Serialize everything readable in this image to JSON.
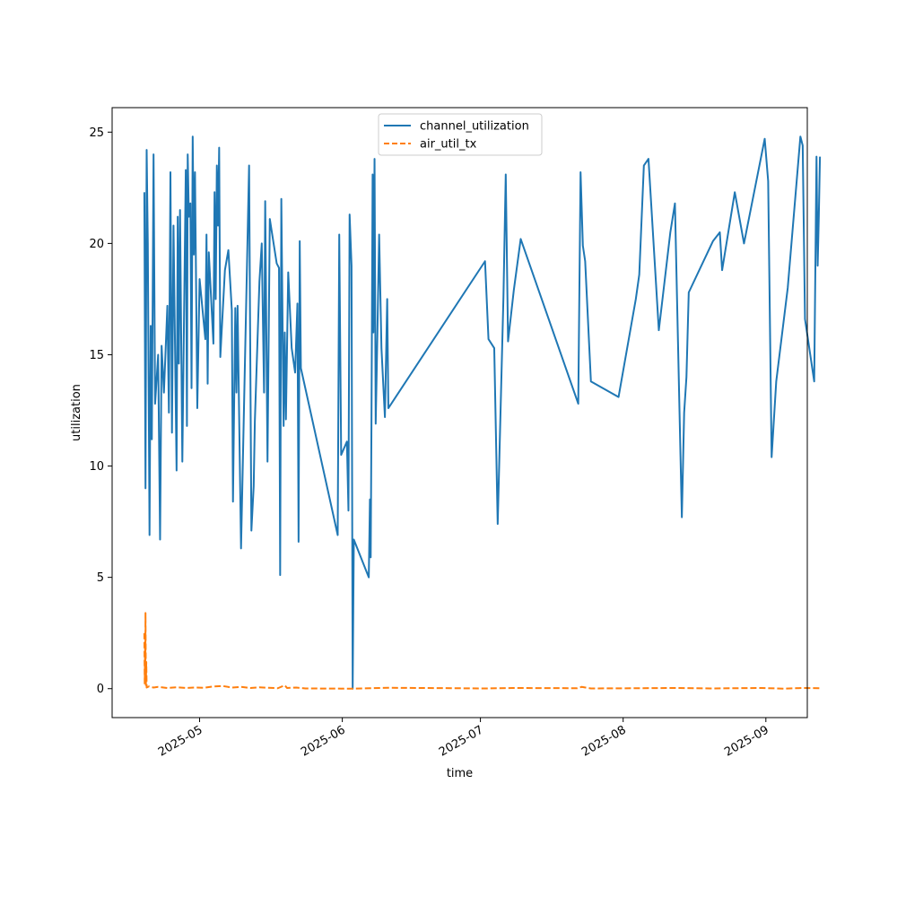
{
  "chart_data": {
    "type": "line",
    "title": "",
    "xlabel": "time",
    "ylabel": "utilization",
    "x_ticks": [
      "2025-05",
      "2025-06",
      "2025-07",
      "2025-08",
      "2025-09"
    ],
    "y_ticks": [
      "0",
      "5",
      "10",
      "15",
      "20",
      "25"
    ],
    "xlim": [
      "2025-04-12",
      "2025-09-10"
    ],
    "ylim": [
      -1.3,
      26.1
    ],
    "grid": false,
    "legend_position": "top-center",
    "series": [
      {
        "name": "channel_utilization",
        "color": "#1f77b4",
        "style": "solid",
        "points": [
          [
            "2025-04-19T00:00",
            22.3
          ],
          [
            "2025-04-19T06:00",
            9.0
          ],
          [
            "2025-04-19T12:00",
            24.2
          ],
          [
            "2025-04-19T18:00",
            20.0
          ],
          [
            "2025-04-20T03:00",
            6.9
          ],
          [
            "2025-04-20T09:00",
            16.3
          ],
          [
            "2025-04-20T15:00",
            11.2
          ],
          [
            "2025-04-21T00:00",
            24.0
          ],
          [
            "2025-04-21T08:00",
            12.8
          ],
          [
            "2025-04-22T00:00",
            15.0
          ],
          [
            "2025-04-22T10:00",
            6.7
          ],
          [
            "2025-04-22T18:00",
            15.4
          ],
          [
            "2025-04-23T06:00",
            13.3
          ],
          [
            "2025-04-24T00:00",
            17.2
          ],
          [
            "2025-04-24T08:00",
            12.4
          ],
          [
            "2025-04-24T16:00",
            23.2
          ],
          [
            "2025-04-25T00:00",
            11.5
          ],
          [
            "2025-04-25T08:00",
            20.8
          ],
          [
            "2025-04-26T00:00",
            9.8
          ],
          [
            "2025-04-26T06:00",
            21.2
          ],
          [
            "2025-04-26T12:00",
            14.6
          ],
          [
            "2025-04-26T18:00",
            21.5
          ],
          [
            "2025-04-27T06:00",
            10.2
          ],
          [
            "2025-04-27T18:00",
            19.0
          ],
          [
            "2025-04-28T00:00",
            23.3
          ],
          [
            "2025-04-28T06:00",
            11.8
          ],
          [
            "2025-04-28T10:00",
            24.0
          ],
          [
            "2025-04-28T16:00",
            21.2
          ],
          [
            "2025-04-29T00:00",
            21.8
          ],
          [
            "2025-04-29T06:00",
            13.5
          ],
          [
            "2025-04-29T12:00",
            24.8
          ],
          [
            "2025-04-29T18:00",
            19.5
          ],
          [
            "2025-04-30T00:00",
            23.2
          ],
          [
            "2025-04-30T12:00",
            12.6
          ],
          [
            "2025-05-01T00:00",
            18.4
          ],
          [
            "2025-05-02T06:00",
            15.7
          ],
          [
            "2025-05-02T12:00",
            20.4
          ],
          [
            "2025-05-02T18:00",
            13.7
          ],
          [
            "2025-05-03T00:00",
            19.6
          ],
          [
            "2025-05-04T00:00",
            15.5
          ],
          [
            "2025-05-04T06:00",
            22.3
          ],
          [
            "2025-05-04T12:00",
            17.5
          ],
          [
            "2025-05-04T18:00",
            23.5
          ],
          [
            "2025-05-05T00:00",
            20.8
          ],
          [
            "2025-05-05T06:00",
            24.3
          ],
          [
            "2025-05-05T12:00",
            14.9
          ],
          [
            "2025-05-06T12:00",
            18.8
          ],
          [
            "2025-05-07T06:00",
            19.7
          ],
          [
            "2025-05-08T00:00",
            17.0
          ],
          [
            "2025-05-08T06:00",
            8.4
          ],
          [
            "2025-05-08T18:00",
            17.1
          ],
          [
            "2025-05-09T00:00",
            13.3
          ],
          [
            "2025-05-09T06:00",
            17.2
          ],
          [
            "2025-05-10T00:00",
            6.3
          ],
          [
            "2025-05-11T18:00",
            23.5
          ],
          [
            "2025-05-12T06:00",
            7.1
          ],
          [
            "2025-05-12T18:00",
            9.1
          ],
          [
            "2025-05-13T00:00",
            12.0
          ],
          [
            "2025-05-14T00:00",
            18.3
          ],
          [
            "2025-05-14T12:00",
            20.0
          ],
          [
            "2025-05-15T00:00",
            13.3
          ],
          [
            "2025-05-15T06:00",
            21.9
          ],
          [
            "2025-05-15T18:00",
            10.2
          ],
          [
            "2025-05-16T06:00",
            21.1
          ],
          [
            "2025-05-17T18:00",
            19.1
          ],
          [
            "2025-05-18T06:00",
            18.9
          ],
          [
            "2025-05-18T12:00",
            5.1
          ],
          [
            "2025-05-18T18:00",
            22.0
          ],
          [
            "2025-05-19T06:00",
            11.8
          ],
          [
            "2025-05-19T12:00",
            16.0
          ],
          [
            "2025-05-19T18:00",
            12.1
          ],
          [
            "2025-05-20T06:00",
            18.7
          ],
          [
            "2025-05-21T00:00",
            15.3
          ],
          [
            "2025-05-21T18:00",
            14.2
          ],
          [
            "2025-05-22T06:00",
            17.3
          ],
          [
            "2025-05-22T12:00",
            6.6
          ],
          [
            "2025-05-22T18:00",
            20.1
          ],
          [
            "2025-05-23T00:00",
            14.4
          ],
          [
            "2025-05-31T00:00",
            6.9
          ],
          [
            "2025-05-31T08:00",
            20.4
          ],
          [
            "2025-05-31T18:00",
            10.5
          ],
          [
            "2025-06-02T00:00",
            11.1
          ],
          [
            "2025-06-02T08:00",
            8.0
          ],
          [
            "2025-06-02T14:00",
            21.3
          ],
          [
            "2025-06-03T00:00",
            19.0
          ],
          [
            "2025-06-03T06:00",
            0.0
          ],
          [
            "2025-06-03T12:00",
            6.7
          ],
          [
            "2025-06-06T18:00",
            5.0
          ],
          [
            "2025-06-07T00:00",
            8.5
          ],
          [
            "2025-06-07T04:00",
            5.9
          ],
          [
            "2025-06-07T08:00",
            12.0
          ],
          [
            "2025-06-07T14:00",
            23.1
          ],
          [
            "2025-06-07T18:00",
            16.0
          ],
          [
            "2025-06-08T00:00",
            23.8
          ],
          [
            "2025-06-08T06:00",
            11.9
          ],
          [
            "2025-06-08T12:00",
            14.6
          ],
          [
            "2025-06-09T00:00",
            20.4
          ],
          [
            "2025-06-09T12:00",
            15.3
          ],
          [
            "2025-06-10T06:00",
            12.2
          ],
          [
            "2025-06-10T18:00",
            17.5
          ],
          [
            "2025-06-11T00:00",
            12.6
          ],
          [
            "2025-07-02T00:00",
            19.2
          ],
          [
            "2025-07-02T18:00",
            15.7
          ],
          [
            "2025-07-04T00:00",
            15.3
          ],
          [
            "2025-07-04T18:00",
            7.4
          ],
          [
            "2025-07-06T00:00",
            17.6
          ],
          [
            "2025-07-06T12:00",
            23.1
          ],
          [
            "2025-07-07T00:00",
            15.6
          ],
          [
            "2025-07-08T06:00",
            17.9
          ],
          [
            "2025-07-09T18:00",
            20.2
          ],
          [
            "2025-07-22T06:00",
            12.8
          ],
          [
            "2025-07-22T18:00",
            23.2
          ],
          [
            "2025-07-23T06:00",
            19.9
          ],
          [
            "2025-07-23T18:00",
            19.2
          ],
          [
            "2025-07-25T00:00",
            13.8
          ],
          [
            "2025-07-31T00:00",
            13.1
          ],
          [
            "2025-08-03T18:00",
            17.5
          ],
          [
            "2025-08-04T12:00",
            18.6
          ],
          [
            "2025-08-05T12:00",
            23.5
          ],
          [
            "2025-08-06T12:00",
            23.8
          ],
          [
            "2025-08-08T18:00",
            16.1
          ],
          [
            "2025-08-11T06:00",
            20.5
          ],
          [
            "2025-08-12T06:00",
            21.8
          ],
          [
            "2025-08-13T18:00",
            7.7
          ],
          [
            "2025-08-14T06:00",
            12.4
          ],
          [
            "2025-08-14T18:00",
            14.0
          ],
          [
            "2025-08-15T06:00",
            17.8
          ],
          [
            "2025-08-20T12:00",
            20.1
          ],
          [
            "2025-08-22T00:00",
            20.5
          ],
          [
            "2025-08-22T12:00",
            18.8
          ],
          [
            "2025-08-25T06:00",
            22.3
          ],
          [
            "2025-08-27T06:00",
            20.0
          ],
          [
            "2025-08-31T18:00",
            24.7
          ],
          [
            "2025-09-01T12:00",
            22.8
          ],
          [
            "2025-09-02T06:00",
            10.4
          ],
          [
            "2025-09-03T06:00",
            13.8
          ],
          [
            "2025-09-05T18:00",
            18.0
          ],
          [
            "2025-09-08T12:00",
            24.8
          ],
          [
            "2025-09-09T00:00",
            24.4
          ],
          [
            "2025-09-09T12:00",
            16.6
          ],
          [
            "2025-09-11T12:00",
            13.8
          ],
          [
            "2025-09-12T00:00",
            23.9
          ],
          [
            "2025-09-12T06:00",
            19.0
          ],
          [
            "2025-09-12T12:00",
            21.2
          ],
          [
            "2025-09-12T18:00",
            23.9
          ]
        ]
      },
      {
        "name": "air_util_tx",
        "color": "#ff7f0e",
        "style": "dashed",
        "points": [
          [
            "2025-04-19T00:00",
            2.5
          ],
          [
            "2025-04-19T02:00",
            0.2
          ],
          [
            "2025-04-19T04:00",
            2.1
          ],
          [
            "2025-04-19T05:00",
            0.3
          ],
          [
            "2025-04-19T06:00",
            3.4
          ],
          [
            "2025-04-19T08:00",
            0.1
          ],
          [
            "2025-04-19T10:00",
            1.2
          ],
          [
            "2025-04-19T12:00",
            0.05
          ],
          [
            "2025-04-20T00:00",
            0.1
          ],
          [
            "2025-04-21T00:00",
            0.05
          ],
          [
            "2025-04-22T00:00",
            0.08
          ],
          [
            "2025-04-24T00:00",
            0.03
          ],
          [
            "2025-04-26T00:00",
            0.06
          ],
          [
            "2025-04-28T00:00",
            0.03
          ],
          [
            "2025-04-30T00:00",
            0.05
          ],
          [
            "2025-05-02T00:00",
            0.04
          ],
          [
            "2025-05-04T00:00",
            0.1
          ],
          [
            "2025-05-06T00:00",
            0.12
          ],
          [
            "2025-05-08T00:00",
            0.05
          ],
          [
            "2025-05-10T00:00",
            0.08
          ],
          [
            "2025-05-12T00:00",
            0.03
          ],
          [
            "2025-05-14T00:00",
            0.06
          ],
          [
            "2025-05-16T00:00",
            0.04
          ],
          [
            "2025-05-18T00:00",
            0.02
          ],
          [
            "2025-05-19T12:00",
            0.15
          ],
          [
            "2025-05-20T00:00",
            0.03
          ],
          [
            "2025-05-22T00:00",
            0.05
          ],
          [
            "2025-05-24T00:00",
            0.01
          ],
          [
            "2025-06-03T00:00",
            0.0
          ],
          [
            "2025-06-07T00:00",
            0.02
          ],
          [
            "2025-06-11T00:00",
            0.04
          ],
          [
            "2025-07-02T00:00",
            0.01
          ],
          [
            "2025-07-08T00:00",
            0.03
          ],
          [
            "2025-07-22T00:00",
            0.02
          ],
          [
            "2025-07-23T00:00",
            0.08
          ],
          [
            "2025-07-25T00:00",
            0.01
          ],
          [
            "2025-08-05T00:00",
            0.02
          ],
          [
            "2025-08-12T00:00",
            0.03
          ],
          [
            "2025-08-20T00:00",
            0.01
          ],
          [
            "2025-08-31T00:00",
            0.03
          ],
          [
            "2025-09-05T00:00",
            0.0
          ],
          [
            "2025-09-09T00:00",
            0.03
          ],
          [
            "2025-09-12T18:00",
            0.02
          ]
        ]
      }
    ]
  }
}
